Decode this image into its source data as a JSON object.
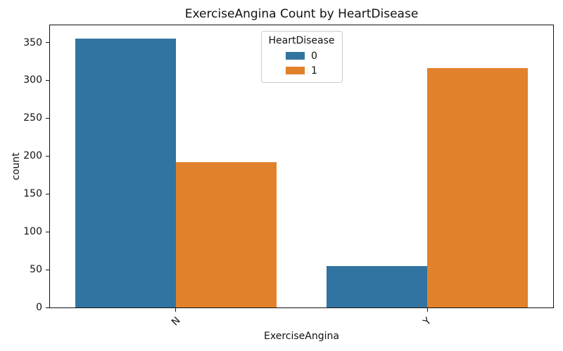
{
  "chart_data": {
    "type": "bar",
    "title": "ExerciseAngina Count by HeartDisease",
    "xlabel": "ExerciseAngina",
    "ylabel": "count",
    "categories": [
      "N",
      "Y"
    ],
    "series": [
      {
        "name": "0",
        "color": "#3274a1",
        "values": [
          355,
          55
        ]
      },
      {
        "name": "1",
        "color": "#e1812c",
        "values": [
          192,
          316
        ]
      }
    ],
    "ylim": [
      0,
      372.75
    ],
    "yticks": [
      0,
      50,
      100,
      150,
      200,
      250,
      300,
      350
    ],
    "xtick_rotation_deg": 45,
    "grid": false,
    "legend": {
      "title": "HeartDisease",
      "position": "upper center"
    },
    "colors": {
      "axis": "#111111",
      "legend_border": "#cccccc",
      "background": "#ffffff"
    }
  }
}
